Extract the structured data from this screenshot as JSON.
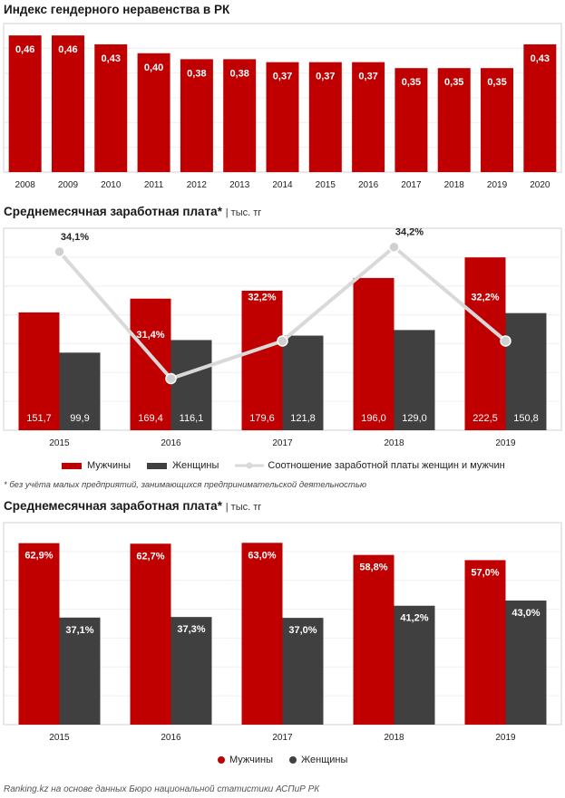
{
  "chart_data": [
    {
      "type": "bar",
      "title": "Индекс гендерного неравенства в РК",
      "categories": [
        "2008",
        "2009",
        "2010",
        "2011",
        "2012",
        "2013",
        "2014",
        "2015",
        "2016",
        "2017",
        "2018",
        "2019",
        "2020"
      ],
      "values": [
        0.46,
        0.46,
        0.43,
        0.4,
        0.38,
        0.38,
        0.37,
        0.37,
        0.37,
        0.35,
        0.35,
        0.35,
        0.43
      ],
      "value_labels": [
        "0,46",
        "0,46",
        "0,43",
        "0,40",
        "0,38",
        "0,38",
        "0,37",
        "0,37",
        "0,37",
        "0,35",
        "0,35",
        "0,35",
        "0,43"
      ],
      "ylim": [
        0,
        0.5
      ],
      "grid": true,
      "color": "#c00000"
    },
    {
      "type": "bar+line",
      "title": "Среднемесячная заработная плата",
      "title_mark": "*",
      "unit": "тыс. тг",
      "categories": [
        "2015",
        "2016",
        "2017",
        "2018",
        "2019"
      ],
      "series": [
        {
          "name": "Мужчины",
          "values": [
            151.7,
            169.4,
            179.6,
            196.0,
            222.5
          ],
          "labels": [
            "151,7",
            "169,4",
            "179,6",
            "196,0",
            "222,5"
          ],
          "color": "#c00000"
        },
        {
          "name": "Женщины",
          "values": [
            99.9,
            116.1,
            121.8,
            129.0,
            150.8
          ],
          "labels": [
            "99,9",
            "116,1",
            "121,8",
            "129,0",
            "150,8"
          ],
          "color": "#404040"
        }
      ],
      "line": {
        "name": "Соотношение заработной платы женщин и мужчин",
        "values": [
          34.1,
          31.4,
          32.2,
          34.2,
          32.2
        ],
        "labels": [
          "34,1%",
          "31,4%",
          "32,2%",
          "34,2%",
          "32,2%"
        ],
        "color": "#d9d9d9"
      },
      "ylim": [
        0,
        260
      ],
      "line_ylim": [
        30.3,
        34.6
      ],
      "grid": true,
      "legend_position": "bottom"
    },
    {
      "type": "bar",
      "title": "Среднемесячная заработная плата",
      "title_mark": "*",
      "unit": "тыс. тг",
      "categories": [
        "2015",
        "2016",
        "2017",
        "2018",
        "2019"
      ],
      "series": [
        {
          "name": "Мужчины",
          "values": [
            62.9,
            62.7,
            63.0,
            58.8,
            57.0
          ],
          "labels": [
            "62,9%",
            "62,7%",
            "63,0%",
            "58,8%",
            "57,0%"
          ],
          "color": "#c00000"
        },
        {
          "name": "Женщины",
          "values": [
            37.1,
            37.3,
            37.0,
            41.2,
            43.0
          ],
          "labels": [
            "37,1%",
            "37,3%",
            "37,0%",
            "41,2%",
            "43,0%"
          ],
          "color": "#404040"
        }
      ],
      "ylim": [
        0,
        70
      ],
      "grid": true,
      "legend_position": "bottom"
    }
  ],
  "legend": {
    "men": "Мужчины",
    "women": "Женщины",
    "ratio": "Соотношение заработной платы женщин и мужчин"
  },
  "footnote": "* без учёта малых предприятий, занимающихся предпринимательской деятельностью",
  "source": "Ranking.kz на основе данных Бюро национальной статистики АСПиР РК"
}
